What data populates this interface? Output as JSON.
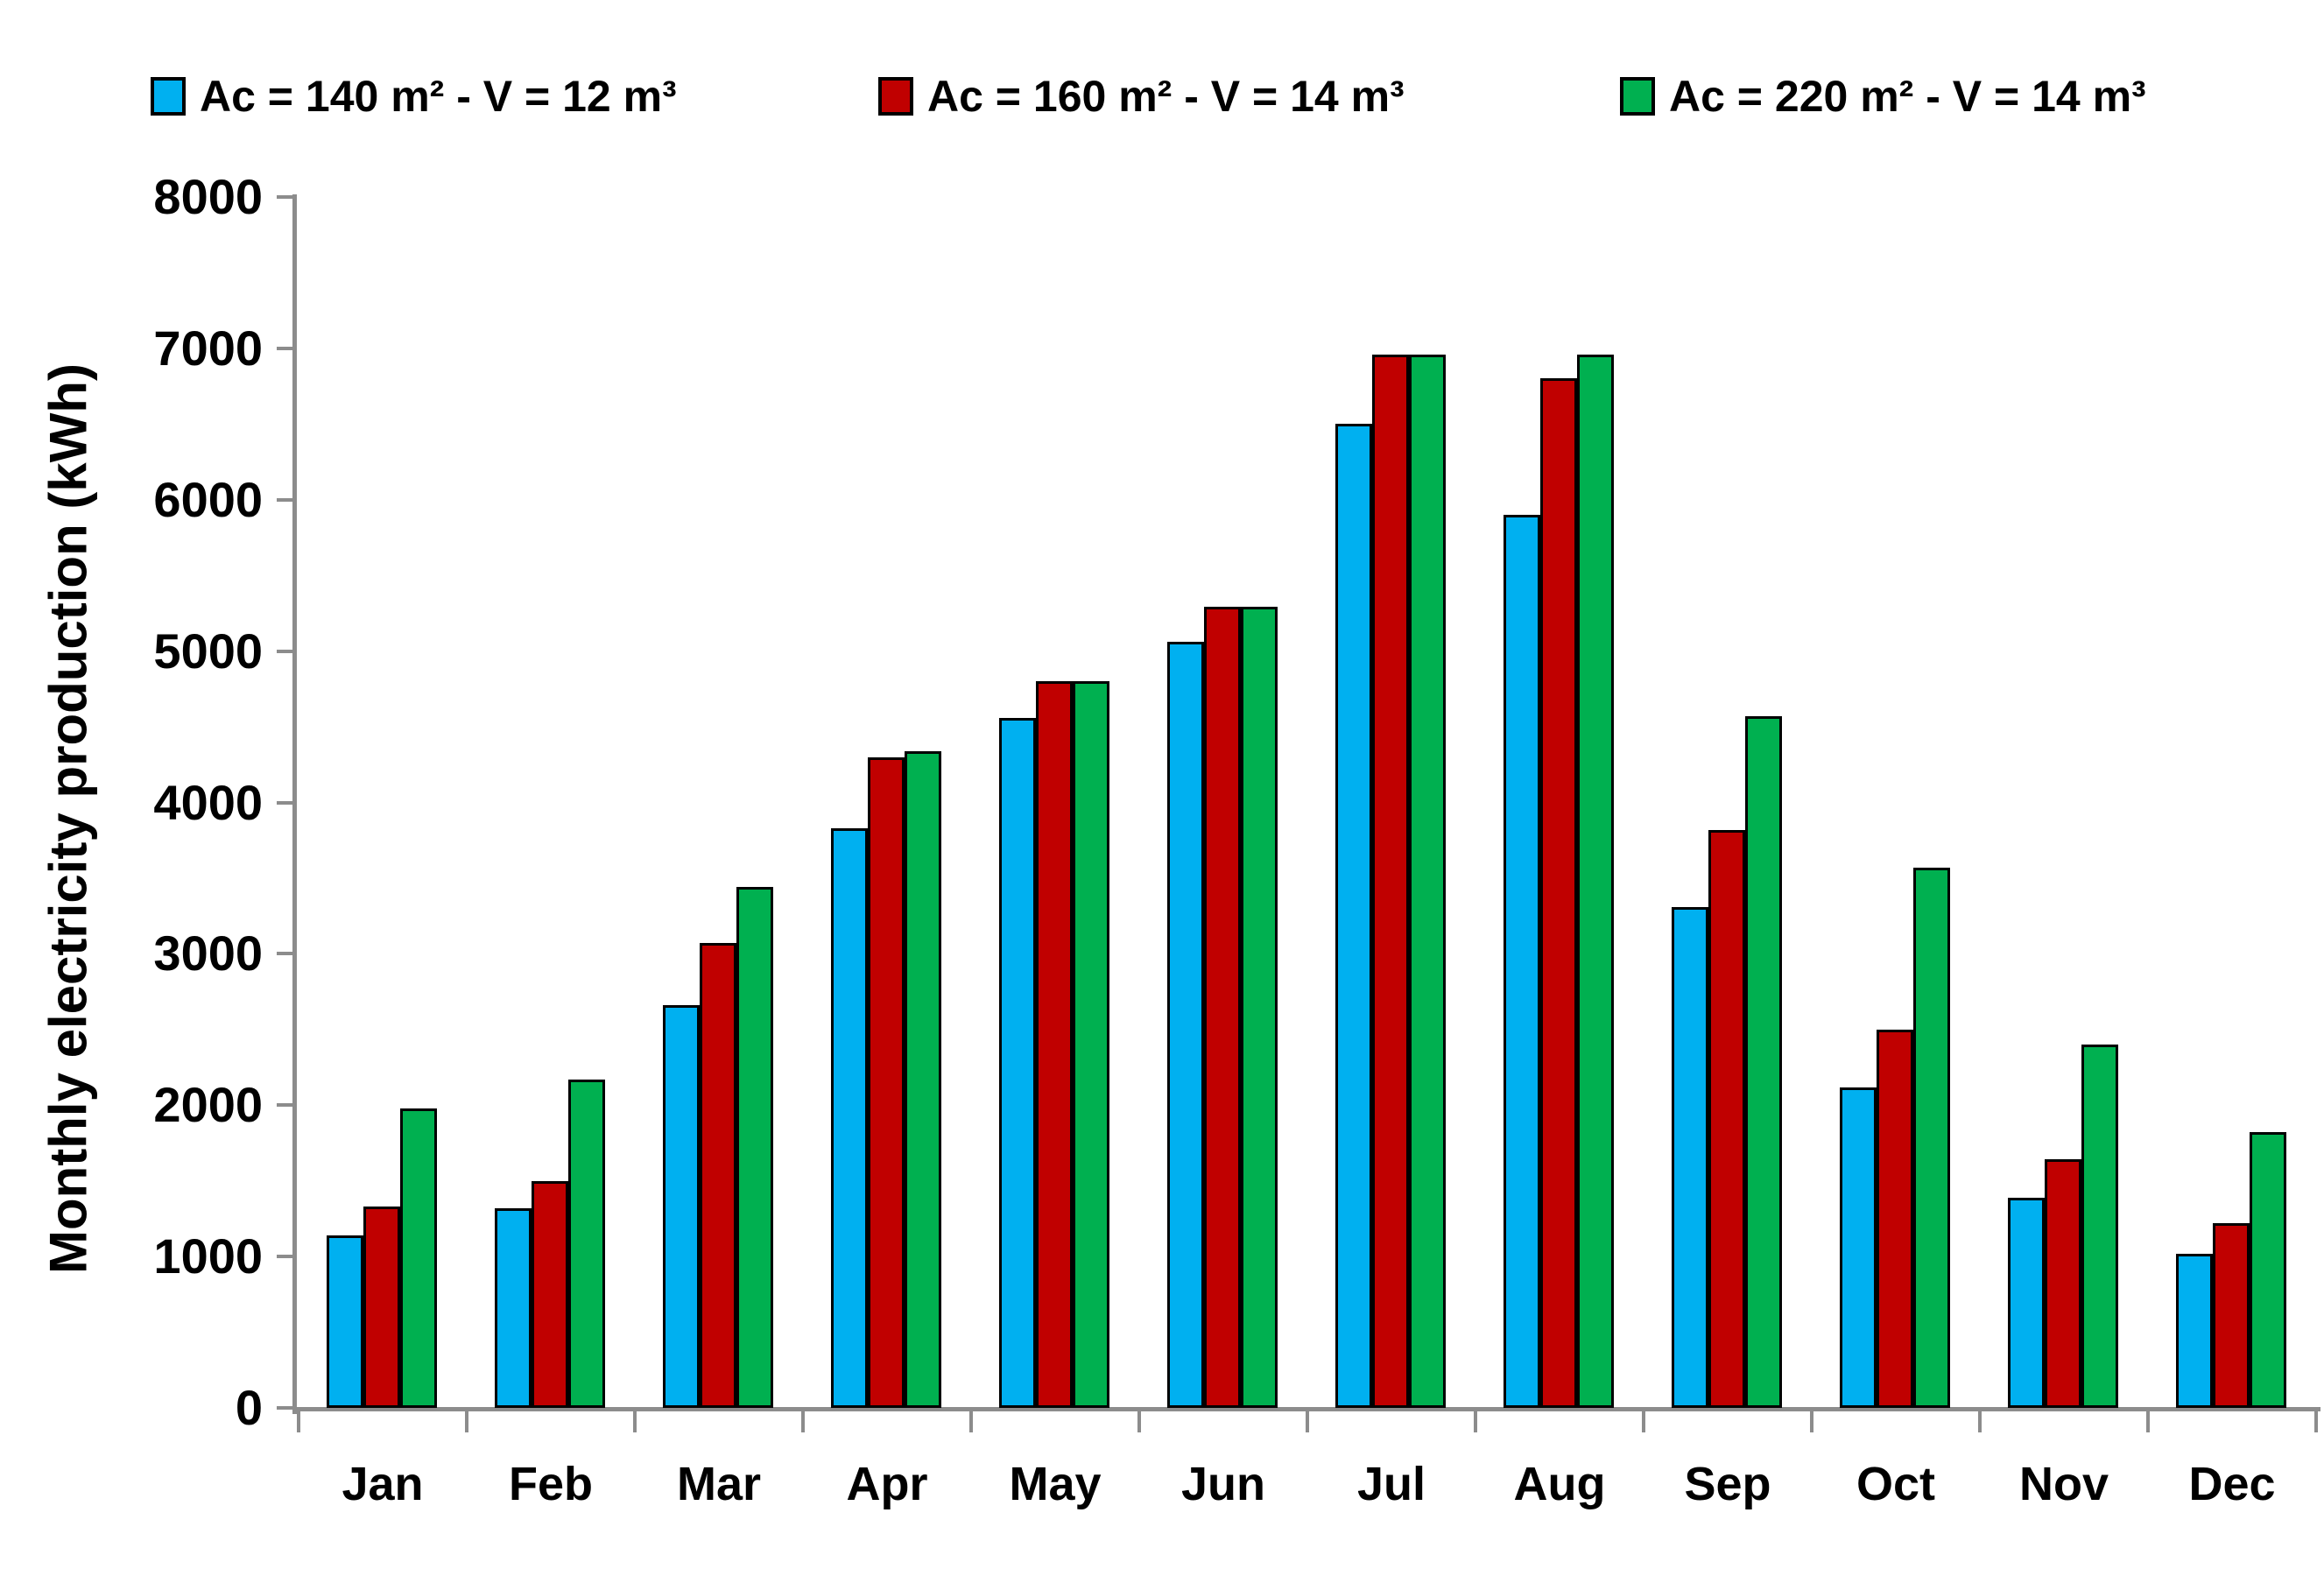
{
  "chart_data": {
    "type": "bar",
    "title": "",
    "xlabel": "",
    "ylabel": "Monthly electricity production (kWh)",
    "ylim": [
      0,
      8000
    ],
    "ytick_step": 1000,
    "yticks": [
      0,
      1000,
      2000,
      3000,
      4000,
      5000,
      6000,
      7000,
      8000
    ],
    "grid": false,
    "legend_position": "top",
    "categories": [
      "Jan",
      "Feb",
      "Mar",
      "Apr",
      "May",
      "Jun",
      "Jul",
      "Aug",
      "Sep",
      "Oct",
      "Nov",
      "Dec"
    ],
    "series": [
      {
        "name": "Ac = 140 m² - V = 12 m³",
        "color": "#00B0F0",
        "values": [
          1140,
          1320,
          2660,
          3830,
          4560,
          5060,
          6500,
          5900,
          3310,
          2120,
          1390,
          1020
        ]
      },
      {
        "name": "Ac = 160 m² - V = 14 m³",
        "color": "#C00000",
        "values": [
          1330,
          1500,
          3070,
          4300,
          4800,
          5290,
          6960,
          6800,
          3820,
          2500,
          1640,
          1220
        ]
      },
      {
        "name": "Ac = 220 m² - V = 14 m³",
        "color": "#00B050",
        "values": [
          1980,
          2170,
          3440,
          4340,
          4800,
          5290,
          6960,
          6960,
          4570,
          3570,
          2400,
          1820
        ]
      }
    ],
    "bar_border_color": "#000000",
    "axis_color": "#8c8c8c",
    "text_color": "#000000"
  }
}
